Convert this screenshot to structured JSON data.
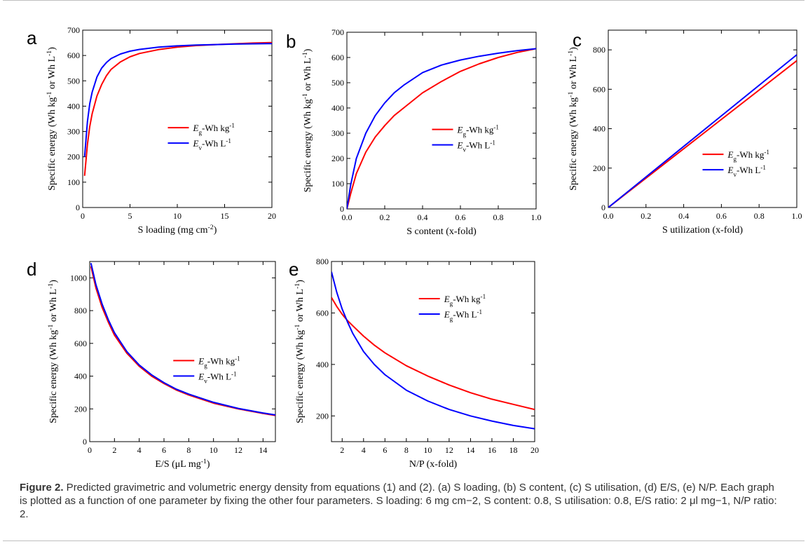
{
  "caption": {
    "label": "Figure 2.",
    "text": " Predicted gravimetric and volumetric energy density from equations (1) and (2). (a) S loading, (b) S content, (c) S utilisation, (d) E/S, (e) N/P. Each graph is plotted as a function of one parameter by fixing the other four parameters. S loading: 6 mg cm−2, S content: 0.8, S utilisation: 0.8, E/S ratio: 2 μl mg−1, N/P ratio: 2."
  },
  "colors": {
    "red": "#ff0000",
    "blue": "#0000ff"
  },
  "chart_data": [
    {
      "panel": "a",
      "type": "line",
      "xlabel": "S loading (mg cm-2)",
      "ylabel": "Specific energy (Wh kg-1 or Wh L-1)",
      "xlim": [
        0,
        20
      ],
      "ylim": [
        0,
        700
      ],
      "xticks": [
        0,
        5,
        10,
        15,
        20
      ],
      "yticks": [
        0,
        100,
        200,
        300,
        400,
        500,
        600,
        700
      ],
      "legend_position": "center-right",
      "series": [
        {
          "name": "Eg-Wh kg-1",
          "color": "red",
          "x": [
            0.2,
            0.5,
            0.75,
            1,
            1.5,
            2,
            2.5,
            3,
            4,
            5,
            6,
            8,
            10,
            12,
            14,
            16,
            18,
            20
          ],
          "y": [
            125,
            250,
            320,
            370,
            440,
            485,
            520,
            545,
            575,
            595,
            608,
            623,
            633,
            639,
            643,
            646,
            649,
            651
          ]
        },
        {
          "name": "Ev-Wh L-1",
          "color": "blue",
          "x": [
            0.2,
            0.5,
            0.75,
            1,
            1.5,
            2,
            2.5,
            3,
            4,
            5,
            6,
            8,
            10,
            12,
            14,
            16,
            18,
            20
          ],
          "y": [
            200,
            340,
            410,
            455,
            515,
            550,
            572,
            588,
            606,
            617,
            624,
            633,
            638,
            641,
            643,
            645,
            646,
            647
          ]
        }
      ]
    },
    {
      "panel": "b",
      "type": "line",
      "xlabel": "S content (x-fold)",
      "ylabel": "Specific energy (Wh kg-1 or Wh L-1)",
      "xlim": [
        0,
        1
      ],
      "ylim": [
        0,
        700
      ],
      "xticks": [
        0.0,
        0.2,
        0.4,
        0.6,
        0.8,
        1.0
      ],
      "yticks": [
        0,
        100,
        200,
        300,
        400,
        500,
        600,
        700
      ],
      "legend_position": "center-right",
      "series": [
        {
          "name": "Eg-Wh kg-1",
          "color": "red",
          "x": [
            0,
            0.02,
            0.05,
            0.1,
            0.15,
            0.2,
            0.25,
            0.3,
            0.4,
            0.5,
            0.6,
            0.7,
            0.8,
            0.9,
            1.0
          ],
          "y": [
            0,
            60,
            140,
            225,
            285,
            330,
            370,
            400,
            460,
            505,
            545,
            575,
            600,
            620,
            635
          ]
        },
        {
          "name": "Ev-Wh L-1",
          "color": "blue",
          "x": [
            0,
            0.02,
            0.05,
            0.1,
            0.15,
            0.2,
            0.25,
            0.3,
            0.4,
            0.5,
            0.6,
            0.7,
            0.8,
            0.9,
            1.0
          ],
          "y": [
            0,
            95,
            200,
            300,
            370,
            420,
            460,
            490,
            540,
            570,
            590,
            605,
            617,
            627,
            635
          ]
        }
      ]
    },
    {
      "panel": "c",
      "type": "line",
      "xlabel": "S utilization (x-fold)",
      "ylabel": "Specific energy (Wh kg-1 or Wh L-1)",
      "xlim": [
        0,
        1
      ],
      "ylim": [
        0,
        900
      ],
      "xticks": [
        0.0,
        0.2,
        0.4,
        0.6,
        0.8,
        1.0
      ],
      "yticks": [
        0,
        200,
        400,
        600,
        800
      ],
      "legend_position": "center-right",
      "series": [
        {
          "name": "Eg-Wh kg-1",
          "color": "red",
          "x": [
            0,
            1.0
          ],
          "y": [
            0,
            745
          ]
        },
        {
          "name": "Ev-Wh L-1",
          "color": "blue",
          "x": [
            0,
            1.0
          ],
          "y": [
            0,
            775
          ]
        }
      ]
    },
    {
      "panel": "d",
      "type": "line",
      "xlabel": "E/S (μL mg-1)",
      "ylabel": "Specific energy (Wh kg-1 or Wh L-1)",
      "xlim": [
        0,
        15
      ],
      "ylim": [
        0,
        1100
      ],
      "xticks": [
        0,
        2,
        4,
        6,
        8,
        10,
        12,
        14
      ],
      "yticks": [
        0,
        200,
        400,
        600,
        800,
        1000
      ],
      "legend_position": "center-right",
      "series": [
        {
          "name": "Eg-Wh kg-1",
          "color": "red",
          "x": [
            0.1,
            0.5,
            1,
            1.5,
            2,
            3,
            4,
            5,
            6,
            7,
            8,
            10,
            12,
            14,
            15
          ],
          "y": [
            1070,
            940,
            820,
            730,
            650,
            540,
            460,
            400,
            355,
            315,
            285,
            235,
            200,
            172,
            160
          ]
        },
        {
          "name": "Ev-Wh L-1",
          "color": "blue",
          "x": [
            0.1,
            0.5,
            1,
            1.5,
            2,
            3,
            4,
            5,
            6,
            7,
            8,
            10,
            12,
            14,
            15
          ],
          "y": [
            1090,
            960,
            840,
            745,
            665,
            550,
            468,
            408,
            360,
            320,
            290,
            240,
            203,
            175,
            163
          ]
        }
      ]
    },
    {
      "panel": "e",
      "type": "line",
      "xlabel": "N/P (x-fold)",
      "ylabel": "Specific energy (Wh kg-1 or Wh L-1)",
      "xlim": [
        1,
        20
      ],
      "ylim": [
        100,
        800
      ],
      "xticks": [
        2,
        4,
        6,
        8,
        10,
        12,
        14,
        16,
        18,
        20
      ],
      "yticks": [
        200,
        400,
        600,
        800
      ],
      "legend_position": "top-right",
      "series": [
        {
          "name": "Eg-Wh kg-1",
          "color": "red",
          "x": [
            1,
            1.5,
            2,
            2.5,
            3,
            4,
            5,
            6,
            8,
            10,
            12,
            14,
            16,
            18,
            20
          ],
          "y": [
            660,
            625,
            595,
            570,
            550,
            510,
            475,
            445,
            395,
            355,
            320,
            290,
            265,
            245,
            225
          ]
        },
        {
          "name": "Eg-Wh L-1",
          "color": "blue",
          "x": [
            1,
            1.5,
            2,
            2.5,
            3,
            4,
            5,
            6,
            8,
            10,
            12,
            14,
            16,
            18,
            20
          ],
          "y": [
            760,
            680,
            615,
            565,
            520,
            450,
            400,
            360,
            300,
            258,
            225,
            200,
            180,
            163,
            150
          ]
        }
      ]
    }
  ]
}
